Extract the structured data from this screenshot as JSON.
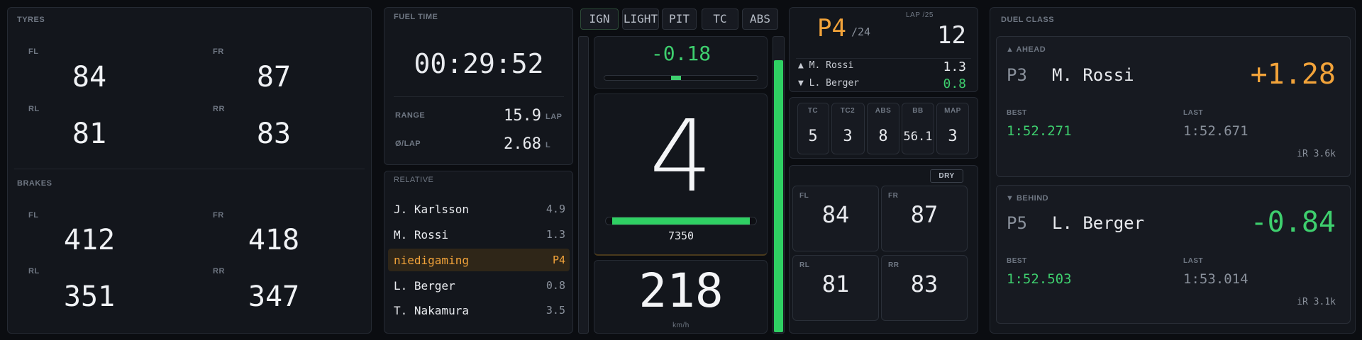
{
  "tyres": {
    "title": "TYRES",
    "cells": [
      {
        "label": "FL",
        "value": 84
      },
      {
        "label": "FR",
        "value": 87
      },
      {
        "label": "RL",
        "value": 81
      },
      {
        "label": "RR",
        "value": 83
      }
    ]
  },
  "brakes": {
    "title": "BRAKES",
    "cells": [
      {
        "label": "FL",
        "value": 412
      },
      {
        "label": "FR",
        "value": 418
      },
      {
        "label": "RL",
        "value": 351
      },
      {
        "label": "RR",
        "value": 347
      }
    ]
  },
  "fuel": {
    "title": "FUEL TIME",
    "time": "00:29:52",
    "range_label": "RANGE",
    "range": 15.9,
    "range_unit": "LAP",
    "per_lap_label": "Ø/LAP",
    "per_lap": 2.68,
    "per_lap_unit": "L"
  },
  "relative": {
    "title": "RELATIVE",
    "rows": [
      {
        "name": "J. Karlsson",
        "gap": 4.9
      },
      {
        "name": "M. Rossi",
        "gap": 1.3
      },
      {
        "name": "niedigaming",
        "gap": "P4"
      },
      {
        "name": "L. Berger",
        "gap": 0.8
      },
      {
        "name": "T. Nakamura",
        "gap": 3.5
      }
    ]
  },
  "buttons": [
    "IGN",
    "LIGHT",
    "PIT",
    "TC",
    "ABS"
  ],
  "delta": -0.18,
  "gear": 4,
  "rpm": 7350,
  "speed": 218,
  "speed_unit": "km/h",
  "position": {
    "pos": "P4",
    "of": "/24",
    "lap_label": "LAP /25",
    "lap": 12,
    "ahead": "▲ M. Rossi",
    "ahead_gap": 1.3,
    "behind": "▼ L. Berger",
    "behind_gap": 0.8
  },
  "settings": [
    {
      "label": "TC",
      "value": 5
    },
    {
      "label": "TC2",
      "value": 3
    },
    {
      "label": "ABS",
      "value": 8
    },
    {
      "label": "BB",
      "value": 56.1
    },
    {
      "label": "MAP",
      "value": 3
    }
  ],
  "tyre_temps": {
    "compound": "DRY",
    "cells": [
      {
        "label": "FL",
        "value": 84
      },
      {
        "label": "FR",
        "value": 87
      },
      {
        "label": "RL",
        "value": 81
      },
      {
        "label": "RR",
        "value": 83
      }
    ]
  },
  "duel": {
    "title": "DUEL CLASS",
    "ahead": {
      "heading": "▲ AHEAD",
      "pos": "P3",
      "name": "M. Rossi",
      "gap": "+1.28",
      "best_label": "BEST",
      "best": "1:52.271",
      "last_label": "LAST",
      "last": "1:52.671",
      "irating": "iR 3.6k"
    },
    "behind": {
      "heading": "▼ BEHIND",
      "pos": "P5",
      "name": "L. Berger",
      "gap": -0.84,
      "best_label": "BEST",
      "best": "1:52.503",
      "last_label": "LAST",
      "last": "1:53.014",
      "irating": "iR 3.1k"
    }
  }
}
